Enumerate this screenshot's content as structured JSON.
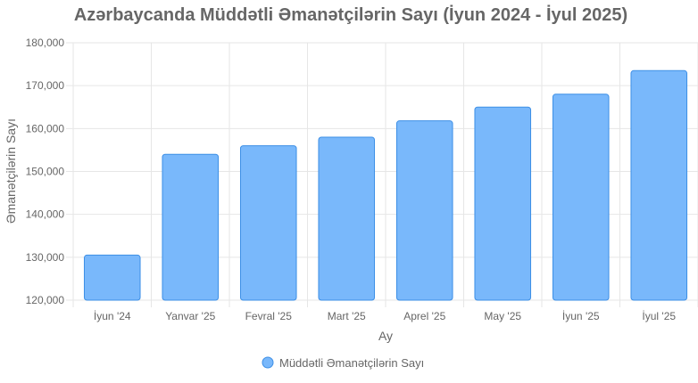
{
  "chart_data": {
    "type": "bar",
    "title": "Azərbaycanda Müddətli Əmanətçilərin Sayı (İyun 2024 - İyul 2025)",
    "xlabel": "Ay",
    "ylabel": "Əmanətçilərin Sayı",
    "categories": [
      "İyun '24",
      "Yanvar '25",
      "Fevral '25",
      "Mart '25",
      "Aprel '25",
      "May '25",
      "İyun '25",
      "İyul '25"
    ],
    "series": [
      {
        "name": "Müddətli Əmanətçilərin Sayı",
        "values": [
          130500,
          154000,
          156000,
          158000,
          161800,
          165000,
          168000,
          173500
        ]
      }
    ],
    "ylim": [
      120000,
      180000
    ],
    "yticks": [
      120000,
      130000,
      140000,
      150000,
      160000,
      170000,
      180000
    ],
    "ytick_labels": [
      "120,000",
      "130,000",
      "140,000",
      "150,000",
      "160,000",
      "170,000",
      "180,000"
    ],
    "grid": true,
    "legend_position": "bottom",
    "colors": {
      "bar_fill": "#79b8fb",
      "bar_stroke": "#3d8fe6",
      "grid": "#e6e6e6",
      "title": "#666666",
      "text": "#666666"
    }
  }
}
